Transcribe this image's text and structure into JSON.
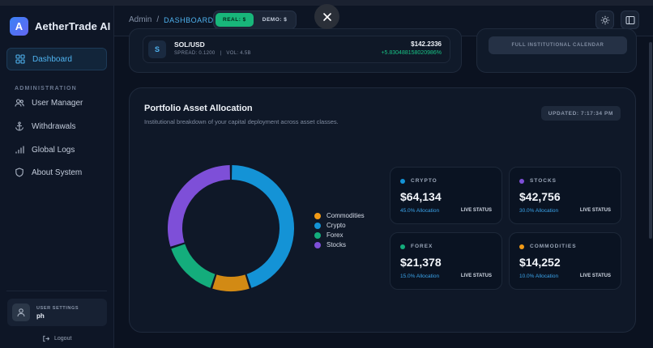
{
  "app": {
    "name": "AetherTrade AI",
    "logo_letter": "A"
  },
  "sidebar": {
    "section_label": "ADMINISTRATION",
    "items": [
      {
        "label": "Dashboard",
        "icon": "grid-icon"
      },
      {
        "label": "User Manager",
        "icon": "users-icon"
      },
      {
        "label": "Withdrawals",
        "icon": "anchor-icon"
      },
      {
        "label": "Global Logs",
        "icon": "bar-chart-icon"
      },
      {
        "label": "About System",
        "icon": "shield-icon"
      }
    ],
    "user": {
      "label": "USER SETTINGS",
      "name": "ph"
    },
    "logout": "Logout"
  },
  "header": {
    "breadcrumb_root": "Admin",
    "breadcrumb_sep": "/",
    "breadcrumb_current": "DASHBOARD",
    "mode_real": "REAL: $",
    "mode_demo": "DEMO: $"
  },
  "ticker": {
    "icon_letter": "S",
    "symbol": "SOL/USD",
    "spread": "SPREAD: 0.1200",
    "sep": "|",
    "volume": "VOL: 4.5B",
    "price": "$142.2336",
    "change": "+5.830488158020986%"
  },
  "calendar_button": "FULL INSTITUTIONAL CALENDAR",
  "allocation": {
    "title": "Portfolio Asset Allocation",
    "subtitle": "Institutional breakdown of your capital deployment across asset classes.",
    "updated": "UPDATED: 7:17:34 PM",
    "legend": [
      {
        "label": "Commodities",
        "color": "#f29a16"
      },
      {
        "label": "Crypto",
        "color": "#1493d6"
      },
      {
        "label": "Forex",
        "color": "#14ad7c"
      },
      {
        "label": "Stocks",
        "color": "#7e4fd8"
      }
    ],
    "cards": [
      {
        "name": "CRYPTO",
        "value": "$64,134",
        "pct": "45.0% Allocation",
        "status": "LIVE STATUS",
        "color": "#1493d6"
      },
      {
        "name": "STOCKS",
        "value": "$42,756",
        "pct": "30.0% Allocation",
        "status": "LIVE STATUS",
        "color": "#7e4fd8"
      },
      {
        "name": "FOREX",
        "value": "$21,378",
        "pct": "15.0% Allocation",
        "status": "LIVE STATUS",
        "color": "#14ad7c"
      },
      {
        "name": "COMMODITIES",
        "value": "$14,252",
        "pct": "10.0% Allocation",
        "status": "LIVE STATUS",
        "color": "#f29a16"
      }
    ]
  },
  "chart_data": {
    "type": "pie",
    "categories": [
      "Crypto",
      "Commodities",
      "Forex",
      "Stocks"
    ],
    "values": [
      45,
      10,
      15,
      30
    ],
    "colors": [
      "#1493d6",
      "#d28a14",
      "#14ad7c",
      "#7e4fd8"
    ],
    "legend_position": "right"
  }
}
